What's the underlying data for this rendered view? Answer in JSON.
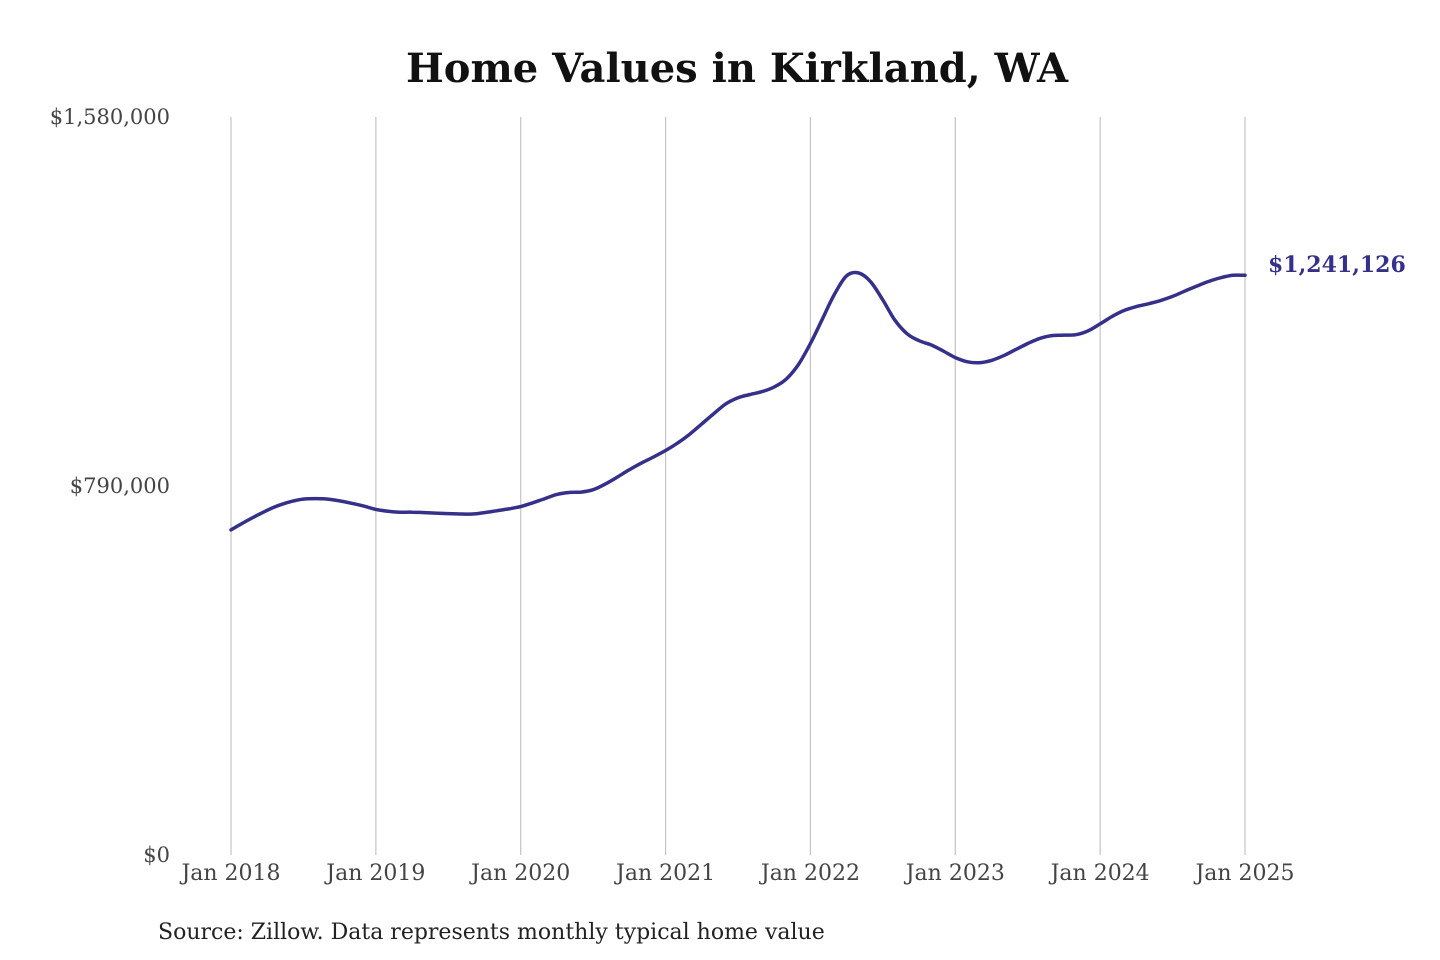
{
  "colors": {
    "series": "#35318a",
    "gridline": "#c4c4c4",
    "text": "#444444"
  },
  "source_note": "Source: Zillow. Data represents monthly typical home value",
  "chart_data": {
    "type": "line",
    "title": "Home Values in Kirkland, WA",
    "xlabel": "",
    "ylabel": "",
    "ylim": [
      0,
      1580000
    ],
    "xlim": [
      "2018-01",
      "2025-01"
    ],
    "y_ticks": [
      {
        "value": 0,
        "label": "$0"
      },
      {
        "value": 790000,
        "label": "$790,000"
      },
      {
        "value": 1580000,
        "label": "$1,580,000"
      }
    ],
    "x_ticks": [
      {
        "value": "2018-01",
        "label": "Jan 2018"
      },
      {
        "value": "2019-01",
        "label": "Jan 2019"
      },
      {
        "value": "2020-01",
        "label": "Jan 2020"
      },
      {
        "value": "2021-01",
        "label": "Jan 2021"
      },
      {
        "value": "2022-01",
        "label": "Jan 2022"
      },
      {
        "value": "2023-01",
        "label": "Jan 2023"
      },
      {
        "value": "2024-01",
        "label": "Jan 2024"
      },
      {
        "value": "2025-01",
        "label": "Jan 2025"
      }
    ],
    "grid": {
      "vertical": true,
      "horizontal": false
    },
    "legend": "none",
    "end_label": "$1,241,126",
    "series": [
      {
        "x": [
          "2018-01",
          "2018-02",
          "2018-03",
          "2018-04",
          "2018-05",
          "2018-06",
          "2018-07",
          "2018-08",
          "2018-09",
          "2018-10",
          "2018-11",
          "2018-12",
          "2019-01",
          "2019-02",
          "2019-03",
          "2019-04",
          "2019-05",
          "2019-06",
          "2019-07",
          "2019-08",
          "2019-09",
          "2019-10",
          "2019-11",
          "2019-12",
          "2020-01",
          "2020-02",
          "2020-03",
          "2020-04",
          "2020-05",
          "2020-06",
          "2020-07",
          "2020-08",
          "2020-09",
          "2020-10",
          "2020-11",
          "2020-12",
          "2021-01",
          "2021-02",
          "2021-03",
          "2021-04",
          "2021-05",
          "2021-06",
          "2021-07",
          "2021-08",
          "2021-09",
          "2021-10",
          "2021-11",
          "2021-12",
          "2022-01",
          "2022-02",
          "2022-03",
          "2022-04",
          "2022-05",
          "2022-06",
          "2022-07",
          "2022-08",
          "2022-09",
          "2022-10",
          "2022-11",
          "2022-12",
          "2023-01",
          "2023-02",
          "2023-03",
          "2023-04",
          "2023-05",
          "2023-06",
          "2023-07",
          "2023-08",
          "2023-09",
          "2023-10",
          "2023-11",
          "2023-12",
          "2024-01",
          "2024-02",
          "2024-03",
          "2024-04",
          "2024-05",
          "2024-06",
          "2024-07",
          "2024-08",
          "2024-09",
          "2024-10",
          "2024-11",
          "2024-12",
          "2025-01"
        ],
        "values": [
          696000,
          711000,
          725000,
          738000,
          749000,
          757000,
          762000,
          763000,
          762000,
          758000,
          753000,
          747000,
          740000,
          736000,
          734000,
          734000,
          733000,
          732000,
          731000,
          730000,
          730000,
          733000,
          737000,
          741000,
          746000,
          754000,
          763000,
          772000,
          776000,
          777000,
          782000,
          794000,
          809000,
          825000,
          839000,
          852000,
          866000,
          882000,
          901000,
          923000,
          945000,
          966000,
          979000,
          986000,
          992000,
          1002000,
          1019000,
          1050000,
          1095000,
          1148000,
          1201000,
          1240000,
          1246000,
          1227000,
          1188000,
          1145000,
          1116000,
          1101000,
          1092000,
          1079000,
          1065000,
          1056000,
          1054000,
          1059000,
          1069000,
          1082000,
          1095000,
          1106000,
          1112000,
          1113000,
          1114000,
          1122000,
          1137000,
          1153000,
          1166000,
          1174000,
          1180000,
          1187000,
          1196000,
          1207000,
          1218000,
          1228000,
          1236000,
          1241126,
          1241126
        ]
      }
    ]
  }
}
